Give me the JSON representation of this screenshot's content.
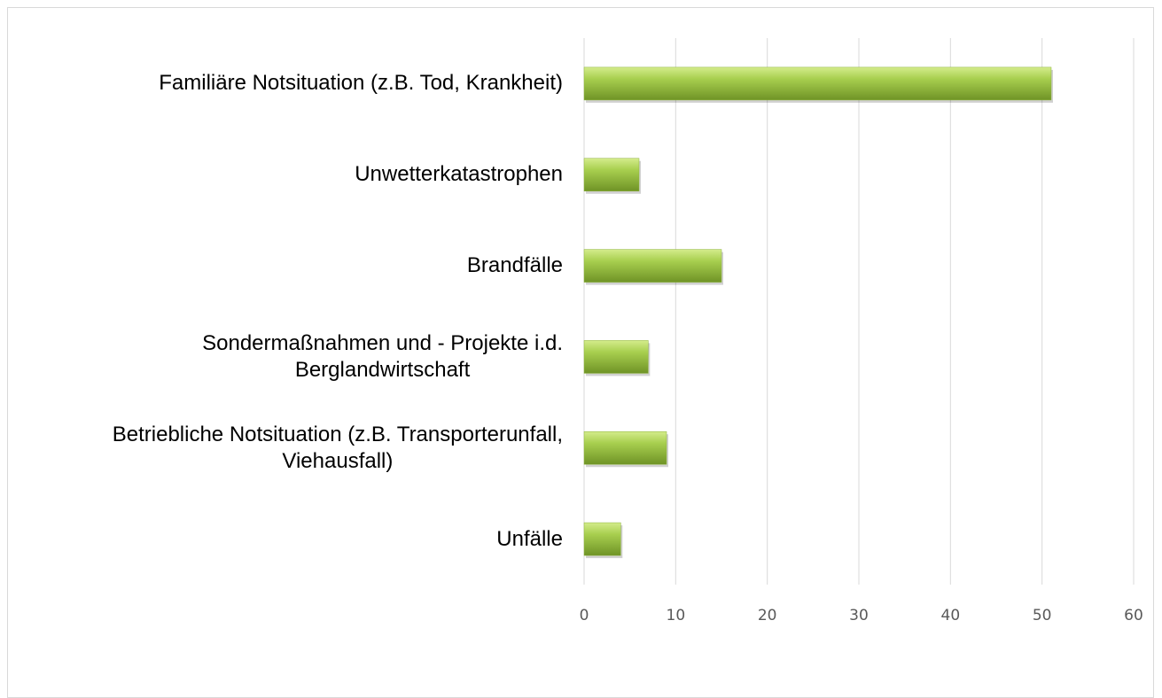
{
  "chart_data": {
    "type": "bar",
    "orientation": "horizontal",
    "categories": [
      "Familiäre Notsituation (z.B. Tod, Krankheit)",
      "Unwetterkatastrophen",
      "Brandfälle",
      "Sondermaßnahmen und - Projekte i.d.\nBerglandwirtschaft",
      "Betriebliche Notsituation (z.B. Transporterunfall,\nViehausfall)",
      "Unfälle"
    ],
    "values": [
      51,
      6,
      15,
      7,
      9,
      4
    ],
    "color": "#8db33a",
    "xlim": [
      0,
      60
    ],
    "xticks": [
      0,
      10,
      20,
      30,
      40,
      50,
      60
    ],
    "grid": true
  }
}
